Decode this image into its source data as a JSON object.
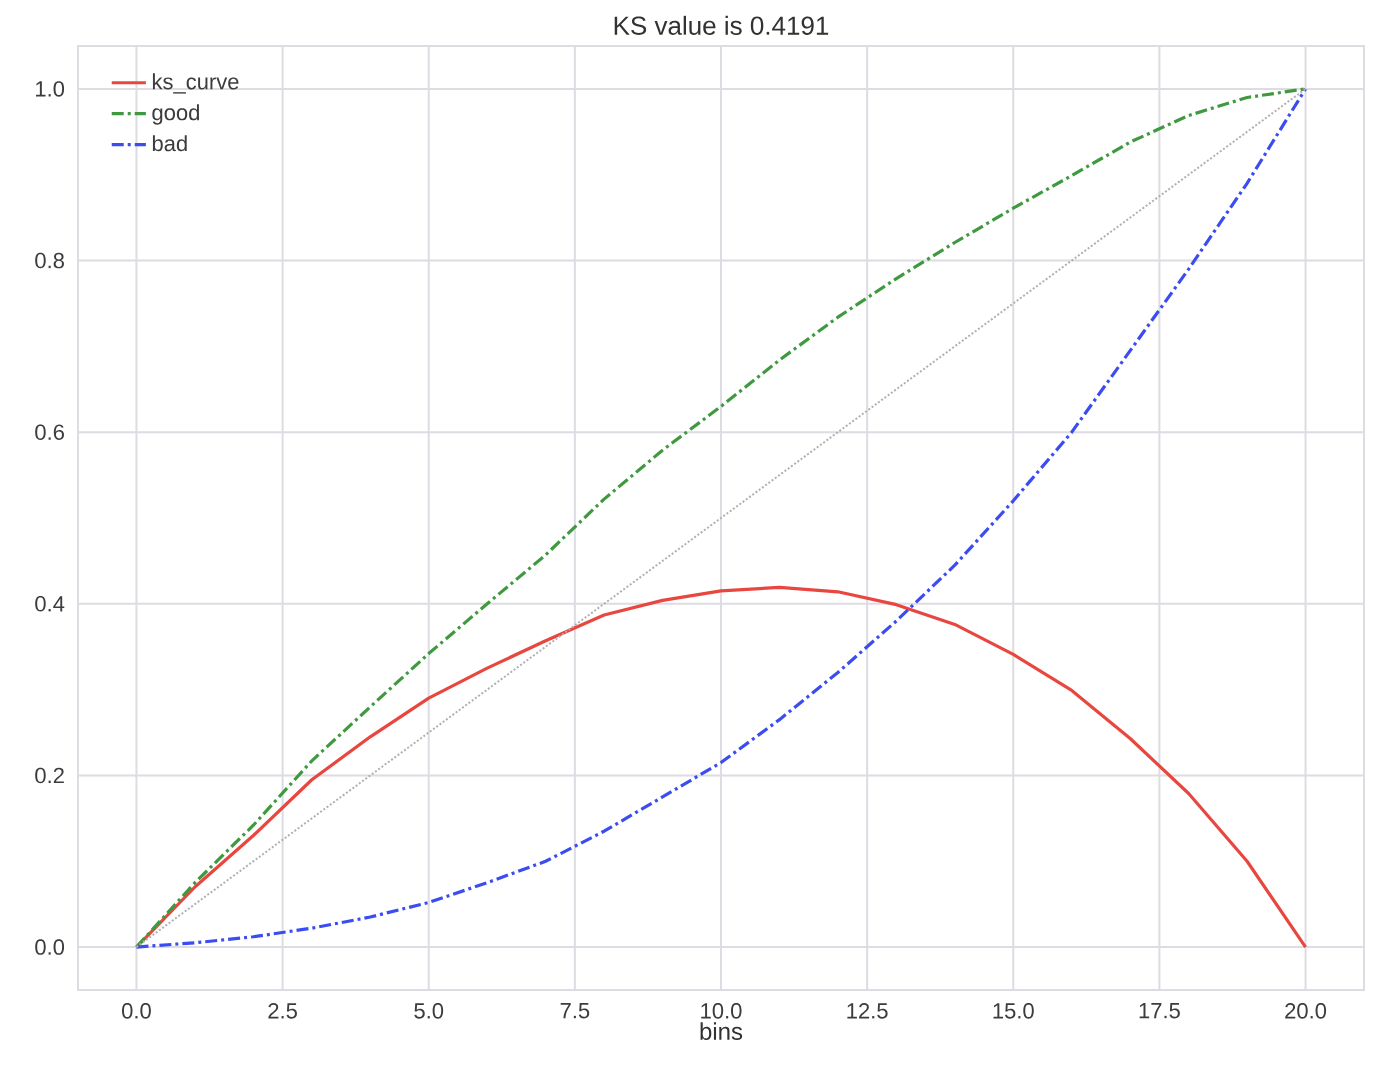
{
  "chart_data": {
    "type": "line",
    "title": "KS value is 0.4191",
    "xlabel": "bins",
    "x": [
      0,
      1,
      2,
      3,
      4,
      5,
      6,
      7,
      8,
      9,
      10,
      11,
      12,
      13,
      14,
      15,
      16,
      17,
      18,
      19,
      20
    ],
    "series": [
      {
        "name": "ks_curve",
        "color": "#e8473f",
        "line_style": "solid",
        "values": [
          0,
          0.07,
          0.13,
          0.195,
          0.245,
          0.29,
          0.325,
          0.357,
          0.387,
          0.404,
          0.415,
          0.4191,
          0.414,
          0.399,
          0.376,
          0.341,
          0.299,
          0.243,
          0.179,
          0.1,
          0
        ]
      },
      {
        "name": "good",
        "color": "#3f9a3f",
        "line_style": "dashdot",
        "values": [
          0,
          0.075,
          0.142,
          0.217,
          0.28,
          0.342,
          0.4,
          0.457,
          0.522,
          0.579,
          0.63,
          0.684,
          0.734,
          0.779,
          0.821,
          0.861,
          0.899,
          0.938,
          0.969,
          0.99,
          1
        ]
      },
      {
        "name": "bad",
        "color": "#3b4cf0",
        "line_style": "dashdot",
        "values": [
          0,
          0.005,
          0.012,
          0.022,
          0.035,
          0.052,
          0.075,
          0.1,
          0.135,
          0.175,
          0.215,
          0.265,
          0.32,
          0.38,
          0.445,
          0.52,
          0.6,
          0.695,
          0.79,
          0.89,
          1
        ]
      },
      {
        "color": "#b0b0b0",
        "line_style": "dotted",
        "x": [
          0,
          20
        ],
        "values": [
          0,
          1
        ]
      }
    ],
    "xlim": [
      -1,
      21
    ],
    "ylim": [
      -0.05,
      1.05
    ],
    "xticks": [
      {
        "value": 0,
        "label": "0.0"
      },
      2.5,
      {
        "value": 5,
        "label": "5.0"
      },
      7.5,
      {
        "value": 10,
        "label": "10.0"
      },
      12.5,
      {
        "value": 15,
        "label": "15.0"
      },
      17.5,
      {
        "value": 20,
        "label": "20.0"
      }
    ],
    "yticks": [
      {
        "value": 0,
        "label": "0.0"
      },
      0.2,
      0.4,
      0.6,
      0.8,
      {
        "value": 1,
        "label": "1.0"
      }
    ],
    "grid": true,
    "legend": "top left",
    "marker": "none"
  }
}
